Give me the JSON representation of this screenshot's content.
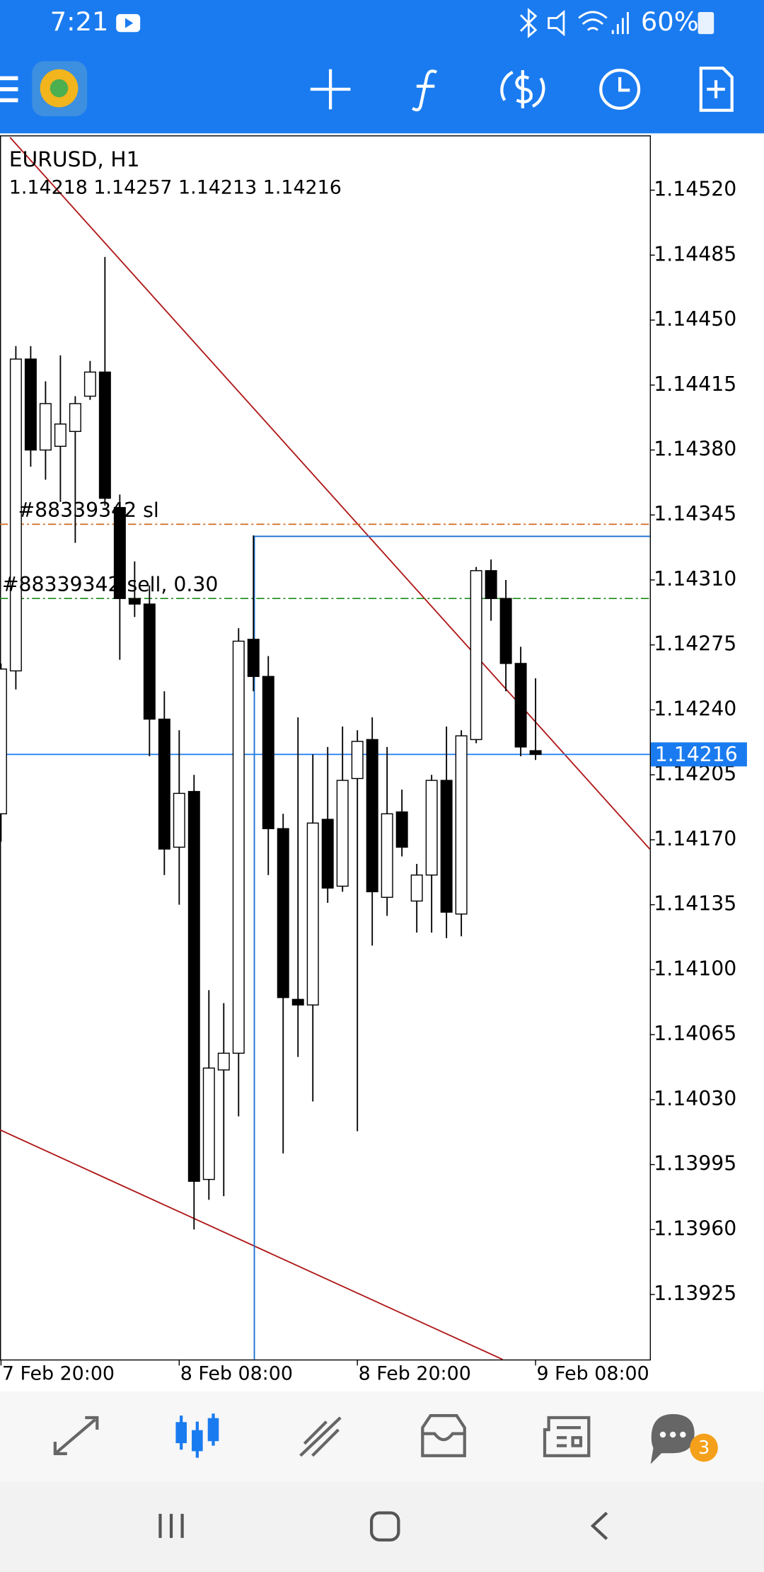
{
  "status_bar": {
    "time": "7:21",
    "battery": "60%"
  },
  "chart_data": {
    "type": "candlestick",
    "title": "EURUSD, H1",
    "subtitle": "1.14218 1.14257 1.14213 1.14216",
    "categories": [
      "7 Feb 20:00",
      null,
      null,
      null,
      null,
      null,
      null,
      null,
      null,
      null,
      null,
      null,
      "8 Feb 08:00",
      null,
      null,
      null,
      null,
      null,
      null,
      null,
      null,
      null,
      null,
      null,
      "8 Feb 20:00",
      null,
      null,
      null,
      null,
      null,
      null,
      null,
      null,
      null,
      null,
      null,
      "9 Feb 08:00"
    ],
    "open": [
      1.14184,
      1.14261,
      1.14429,
      1.1438,
      1.14382,
      1.1439,
      1.14409,
      1.14422,
      1.14349,
      1.143,
      1.14297,
      1.14235,
      1.14166,
      1.14196,
      1.13987,
      1.14046,
      1.14055,
      1.14278,
      1.14258,
      1.14176,
      1.14084,
      1.14081,
      1.14181,
      1.14145,
      1.14203,
      1.14224,
      1.14139,
      1.14185,
      1.14137,
      1.14151,
      1.14202,
      1.1413,
      1.14224,
      1.14315,
      1.143,
      1.14265,
      1.14218
    ],
    "high": [
      1.14265,
      1.14436,
      1.14436,
      1.14417,
      1.14431,
      1.14409,
      1.14428,
      1.14484,
      1.14356,
      1.1432,
      1.14307,
      1.1425,
      1.14229,
      1.14205,
      1.14089,
      1.14082,
      1.14284,
      1.14334,
      1.14269,
      1.14184,
      1.14236,
      1.14216,
      1.1422,
      1.14231,
      1.14229,
      1.14236,
      1.1422,
      1.14197,
      1.14157,
      1.14205,
      1.14231,
      1.14229,
      1.14317,
      1.14321,
      1.1431,
      1.14274,
      1.14257
    ],
    "low": [
      1.14169,
      1.14251,
      1.14371,
      1.14364,
      1.14352,
      1.1433,
      1.14407,
      1.1435,
      1.14267,
      1.1429,
      1.14215,
      1.14151,
      1.14135,
      1.1396,
      1.13976,
      1.13978,
      1.14021,
      1.1425,
      1.14151,
      1.14001,
      1.14053,
      1.14029,
      1.14136,
      1.14142,
      1.14013,
      1.14113,
      1.14129,
      1.14161,
      1.1412,
      1.1412,
      1.14117,
      1.14118,
      1.14222,
      1.14288,
      1.1425,
      1.14215,
      1.14213
    ],
    "close": [
      1.14262,
      1.14429,
      1.1438,
      1.14405,
      1.14394,
      1.14405,
      1.14422,
      1.14354,
      1.143,
      1.14297,
      1.14235,
      1.14165,
      1.14195,
      1.13986,
      1.14047,
      1.14055,
      1.14277,
      1.14258,
      1.14176,
      1.14085,
      1.14081,
      1.14179,
      1.14144,
      1.14202,
      1.14223,
      1.14142,
      1.14184,
      1.14166,
      1.14151,
      1.14202,
      1.14131,
      1.14226,
      1.14315,
      1.143,
      1.14265,
      1.1422,
      1.14216
    ],
    "up_color": "#ffffff",
    "down_color": "#000000",
    "ylim": [
      1.1389,
      1.14549
    ],
    "yticks": [
      {
        "value": 1.1452,
        "label": "1.14520"
      },
      1.14485,
      {
        "value": 1.1445,
        "label": "1.14450"
      },
      1.14415,
      {
        "value": 1.1438,
        "label": "1.14380"
      },
      1.14345,
      {
        "value": 1.1431,
        "label": "1.14310"
      },
      1.14275,
      {
        "value": 1.1424,
        "label": "1.14240"
      },
      1.14205,
      {
        "value": 1.1417,
        "label": "1.14170"
      },
      1.14135,
      {
        "value": 1.141,
        "label": "1.14100"
      },
      1.14065,
      {
        "value": 1.1403,
        "label": "1.14030"
      },
      1.13995,
      {
        "value": 1.1396,
        "label": "1.13960"
      },
      1.13925
    ],
    "bid": 1.14216,
    "bid_color": "#1a7bf0",
    "levels": [
      {
        "label": "#88339342 sl",
        "value": 1.1434,
        "color": "#d2691e"
      },
      {
        "label": "#88339342 sell, 0.30",
        "value": 1.143,
        "color": "#1a8a1a"
      }
    ]
  },
  "nav_badge": "3"
}
